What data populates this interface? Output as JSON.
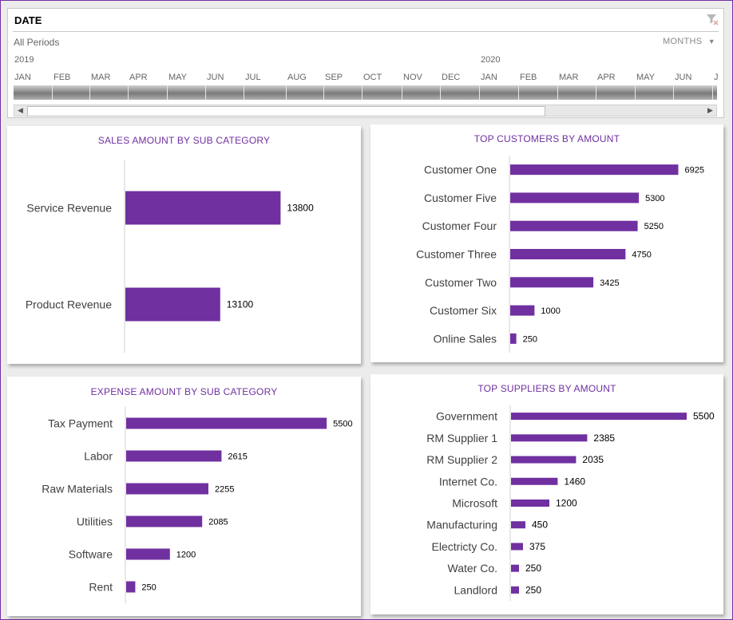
{
  "slicer": {
    "title": "DATE",
    "periods_label": "All Periods",
    "level_label": "MONTHS",
    "years": [
      "2019",
      "2020"
    ],
    "months": [
      "JAN",
      "FEB",
      "MAR",
      "APR",
      "MAY",
      "JUN",
      "JUL",
      "AUG",
      "SEP",
      "OCT",
      "NOV",
      "DEC",
      "JAN",
      "FEB",
      "MAR",
      "APR",
      "MAY",
      "JUN",
      "J"
    ],
    "scroll_left": "◀",
    "scroll_right": "▶"
  },
  "colors": {
    "bar": "#7030a0",
    "title": "#7030a0",
    "axis": "#d0d0d0"
  },
  "chart_data": [
    {
      "id": "sales",
      "type": "bar",
      "orientation": "horizontal",
      "title": "SALES AMOUNT BY SUB CATEGORY",
      "categories": [
        "Service Revenue",
        "Product Revenue"
      ],
      "values": [
        13800,
        13100
      ],
      "xlim": [
        12000,
        14500
      ]
    },
    {
      "id": "customers",
      "type": "bar",
      "orientation": "horizontal",
      "title": "TOP CUSTOMERS BY AMOUNT",
      "categories": [
        "Customer One",
        "Customer Five",
        "Customer Four",
        "Customer Three",
        "Customer Two",
        "Customer Six",
        "Online Sales"
      ],
      "values": [
        6925,
        5300,
        5250,
        4750,
        3425,
        1000,
        250
      ],
      "xlim": [
        0,
        7600
      ]
    },
    {
      "id": "expenses",
      "type": "bar",
      "orientation": "horizontal",
      "title": "EXPENSE AMOUNT BY SUB CATEGORY",
      "categories": [
        "Tax Payment",
        "Labor",
        "Raw Materials",
        "Utilities",
        "Software",
        "Rent"
      ],
      "values": [
        5500,
        2615,
        2255,
        2085,
        1200,
        250
      ],
      "xlim": [
        0,
        6000
      ]
    },
    {
      "id": "suppliers",
      "type": "bar",
      "orientation": "horizontal",
      "title": "TOP SUPPLIERS BY AMOUNT",
      "categories": [
        "Government",
        "RM Supplier 1",
        "RM Supplier 2",
        "Internet Co.",
        "Microsoft",
        "Manufacturing",
        "Electricty Co.",
        "Water Co.",
        "Landlord"
      ],
      "values": [
        5500,
        2385,
        2035,
        1460,
        1200,
        450,
        375,
        250,
        250
      ],
      "xlim": [
        0,
        5850
      ]
    }
  ]
}
